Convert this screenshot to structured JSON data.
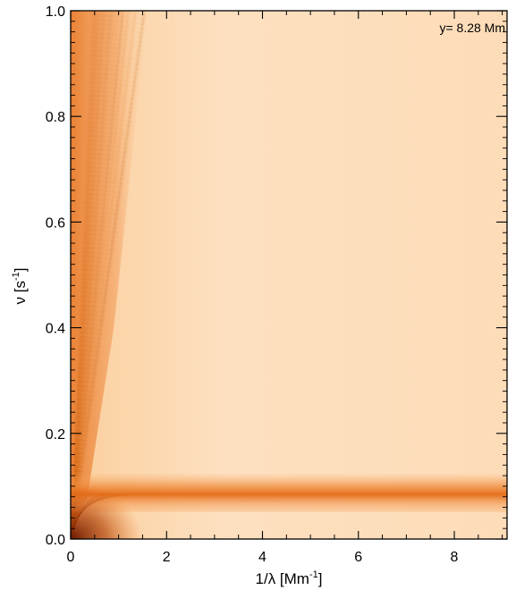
{
  "chart_data": {
    "type": "heatmap",
    "annotation": "y= 8.28 Mm",
    "xlabel": {
      "text": "1/λ [Mm",
      "sup": "-1",
      "suffix": "]"
    },
    "ylabel": {
      "text": "ν [s",
      "sup": "-1",
      "suffix": "]"
    },
    "xlim": [
      0,
      9.1
    ],
    "ylim": [
      0,
      1.0
    ],
    "xticks": [
      0,
      2,
      4,
      6,
      8
    ],
    "xtick_labels": [
      "0",
      "2",
      "4",
      "6",
      "8"
    ],
    "yticks": [
      0.0,
      0.2,
      0.4,
      0.6,
      0.8,
      1.0
    ],
    "ytick_labels": [
      "0.0",
      "0.2",
      "0.4",
      "0.6",
      "0.8",
      "1.0"
    ],
    "colormap": [
      "#ffffff",
      "#fde0c0",
      "#f9b076",
      "#e8741c",
      "#a63a08",
      "#5a1200"
    ],
    "features": [
      {
        "kind": "horizontal-band",
        "nu": 0.085,
        "intensity": 0.85,
        "x_range": [
          0,
          9.1
        ]
      },
      {
        "kind": "ridge-fan",
        "origin": [
          0,
          0
        ],
        "x_extent": [
          0,
          1.6
        ],
        "intensity": 0.75
      },
      {
        "kind": "background",
        "intensity": 0.2
      }
    ]
  }
}
